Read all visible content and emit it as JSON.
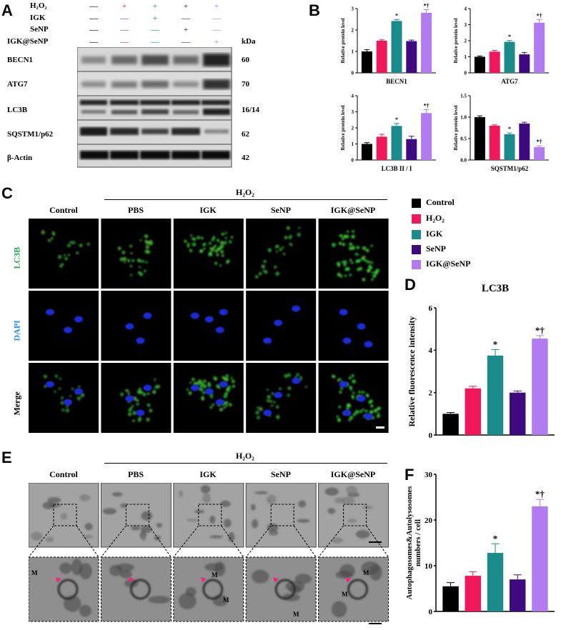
{
  "panel_labels": {
    "a": "A",
    "b": "B",
    "c": "C",
    "d": "D",
    "e": "E",
    "f": "F"
  },
  "treatment_table": {
    "rows": [
      {
        "label": "H₂O₂",
        "signs": [
          "—",
          "+",
          "+",
          "+",
          "+"
        ]
      },
      {
        "label": "IGK",
        "signs": [
          "—",
          "—",
          "+",
          "—",
          "—"
        ]
      },
      {
        "label": "SeNP",
        "signs": [
          "—",
          "—",
          "—",
          "+",
          "—"
        ]
      },
      {
        "label": "IGK@SeNP",
        "signs": [
          "—",
          "—",
          "—",
          "—",
          "+"
        ]
      }
    ],
    "kda_header": "kDa"
  },
  "blots": [
    {
      "protein": "BECN1",
      "kda": "60"
    },
    {
      "protein": "ATG7",
      "kda": "70"
    },
    {
      "protein": "LC3B",
      "kda": "16/14"
    },
    {
      "protein": "SQSTM1/p62",
      "kda": "62"
    },
    {
      "protein": "β-Actin",
      "kda": "42"
    }
  ],
  "legend": {
    "items": [
      {
        "label": "Control",
        "color": "#000000"
      },
      {
        "label": "H₂O₂",
        "color": "#f0185a"
      },
      {
        "label": "IGK",
        "color": "#1a8a8a"
      },
      {
        "label": "SeNP",
        "color": "#3d0a80"
      },
      {
        "label": "IGK@SeNP",
        "color": "#b07cf0"
      }
    ]
  },
  "panel_c": {
    "h2o2_label": "H₂O₂",
    "groups": [
      "Control",
      "PBS",
      "IGK",
      "SeNP",
      "IGK@SeNP"
    ],
    "rows": [
      "LC3B",
      "DAPI",
      "Merge"
    ]
  },
  "panel_e": {
    "h2o2_label": "H₂O₂",
    "groups": [
      "Control",
      "PBS",
      "IGK",
      "SeNP",
      "IGK@SeNP"
    ],
    "mito_label": "M"
  },
  "chart_data": [
    {
      "type": "bar",
      "id": "b1",
      "xlabel": "BECN1",
      "ylabel": "Relative protein level",
      "ylim": [
        0,
        3
      ],
      "yticks": [
        0,
        1,
        2,
        3
      ],
      "values": [
        1.0,
        1.5,
        2.42,
        1.48,
        2.8
      ],
      "errors": [
        0.08,
        0.04,
        0.07,
        0.05,
        0.15
      ],
      "annotations": [
        "",
        "",
        "*",
        "",
        "*†"
      ]
    },
    {
      "type": "bar",
      "id": "b2",
      "xlabel": "ATG7",
      "ylabel": "Relative protein level",
      "ylim": [
        0,
        4
      ],
      "yticks": [
        0,
        1,
        2,
        3,
        4
      ],
      "values": [
        1.0,
        1.32,
        1.93,
        1.15,
        3.12
      ],
      "errors": [
        0.05,
        0.08,
        0.08,
        0.12,
        0.2
      ],
      "annotations": [
        "",
        "",
        "*",
        "",
        "*†"
      ]
    },
    {
      "type": "bar",
      "id": "b3",
      "xlabel": "LC3B II / I",
      "ylabel": "Relative protein level",
      "ylim": [
        0,
        4
      ],
      "yticks": [
        0,
        1,
        2,
        3,
        4
      ],
      "values": [
        1.0,
        1.45,
        2.12,
        1.3,
        2.92
      ],
      "errors": [
        0.08,
        0.15,
        0.15,
        0.18,
        0.22
      ],
      "annotations": [
        "",
        "",
        "*",
        "",
        "*†"
      ]
    },
    {
      "type": "bar",
      "id": "b4",
      "xlabel": "SQSTM1/p62",
      "ylabel": "Relative protein level",
      "ylim": [
        0,
        1.5
      ],
      "yticks": [
        0.0,
        0.5,
        1.0,
        1.5
      ],
      "values": [
        1.0,
        0.8,
        0.6,
        0.85,
        0.3
      ],
      "errors": [
        0.03,
        0.02,
        0.03,
        0.03,
        0.03
      ],
      "annotations": [
        "",
        "",
        "*",
        "",
        "*†"
      ]
    },
    {
      "type": "bar",
      "id": "d",
      "title": "LC3B",
      "ylabel": "Relative fluorescence intensity",
      "ylim": [
        0,
        6
      ],
      "yticks": [
        0,
        2,
        4,
        6
      ],
      "values": [
        1.0,
        2.2,
        3.75,
        2.0,
        4.55
      ],
      "errors": [
        0.06,
        0.1,
        0.28,
        0.08,
        0.14
      ],
      "annotations": [
        "",
        "",
        "*",
        "",
        "*†"
      ]
    },
    {
      "type": "bar",
      "id": "f",
      "ylabel": "Autophagosomes&Autolysosomes numbers / cell",
      "ylim": [
        0,
        30
      ],
      "yticks": [
        0,
        10,
        20,
        30
      ],
      "values": [
        5.5,
        7.8,
        12.8,
        7.0,
        23.0
      ],
      "errors": [
        0.8,
        0.9,
        2.0,
        1.0,
        1.5
      ],
      "annotations": [
        "",
        "",
        "*",
        "",
        "*†"
      ]
    }
  ]
}
